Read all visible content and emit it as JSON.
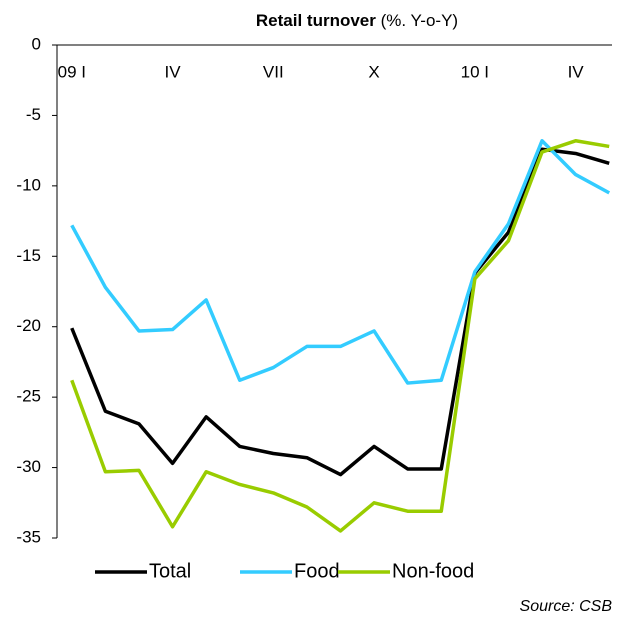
{
  "chart_data": {
    "type": "line",
    "title": "Retail turnover",
    "subtitle": "(%. Y-o-Y)",
    "source": "Source: CSB",
    "categories": [
      "09 I",
      null,
      null,
      "IV",
      null,
      null,
      "VII",
      null,
      null,
      "X",
      null,
      null,
      "10 I",
      null,
      null,
      "IV",
      null
    ],
    "series": [
      {
        "name": "Total",
        "color": "#000000",
        "values": [
          -20.1,
          -26.0,
          -26.9,
          -29.7,
          -26.4,
          -28.5,
          -29.0,
          -29.3,
          -30.5,
          -28.5,
          -30.1,
          -30.1,
          -16.2,
          -13.3,
          -7.4,
          -7.7,
          -8.4
        ]
      },
      {
        "name": "Food",
        "color": "#33ccff",
        "values": [
          -12.8,
          -17.2,
          -20.3,
          -20.2,
          -18.1,
          -23.8,
          -22.9,
          -21.4,
          -21.4,
          -20.3,
          -24.0,
          -23.8,
          -16.1,
          -12.7,
          -6.8,
          -9.2,
          -10.5
        ]
      },
      {
        "name": "Non-food",
        "color": "#99cc00",
        "values": [
          -23.8,
          -30.3,
          -30.2,
          -34.2,
          -30.3,
          -31.2,
          -31.8,
          -32.8,
          -34.5,
          -32.5,
          -33.1,
          -33.1,
          -16.6,
          -13.9,
          -7.6,
          -6.8,
          -7.2
        ]
      }
    ],
    "ylim": [
      -35,
      0
    ],
    "yticks": [
      0,
      -5,
      -10,
      -15,
      -20,
      -25,
      -30,
      -35
    ],
    "grid": false,
    "legend": "bottom"
  }
}
